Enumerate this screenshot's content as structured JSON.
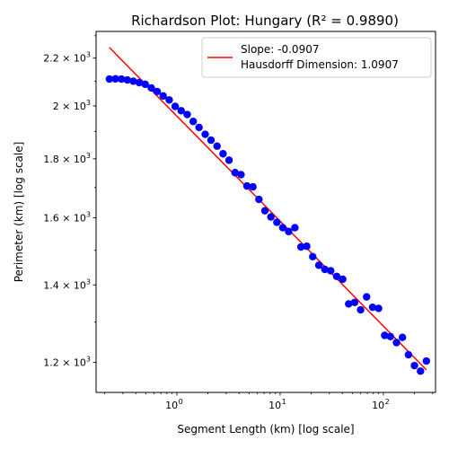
{
  "chart_data": {
    "type": "scatter",
    "title": "Richardson Plot: Hungary (R² = 0.9890)",
    "xlabel": "Segment Length (km) [log scale]",
    "ylabel": "Perimeter (km) [log scale]",
    "xscale": "log",
    "yscale": "log",
    "xlim": [
      0.165,
      320
    ],
    "ylim": [
      1130,
      2320
    ],
    "x_ticks": [
      {
        "value": 1,
        "base": "10",
        "exp": "0"
      },
      {
        "value": 10,
        "base": "10",
        "exp": "1"
      },
      {
        "value": 100,
        "base": "10",
        "exp": "2"
      }
    ],
    "y_ticks": [
      {
        "value": 1200,
        "mant": "1.2",
        "exp": "3"
      },
      {
        "value": 1400,
        "mant": "1.4",
        "exp": "3"
      },
      {
        "value": 1600,
        "mant": "1.6",
        "exp": "3"
      },
      {
        "value": 1800,
        "mant": "1.8",
        "exp": "3"
      },
      {
        "value": 2000,
        "mant": "2",
        "exp": "3"
      },
      {
        "value": 2200,
        "mant": "2.2",
        "exp": "3"
      }
    ],
    "grid": false,
    "legend_position": "top-right",
    "series": [
      {
        "kind": "scatter",
        "color": "#0000ff",
        "points": [
          [
            0.222,
            2110
          ],
          [
            0.254,
            2111
          ],
          [
            0.29,
            2110
          ],
          [
            0.331,
            2106
          ],
          [
            0.378,
            2101
          ],
          [
            0.432,
            2095
          ],
          [
            0.494,
            2088
          ],
          [
            0.565,
            2073
          ],
          [
            0.645,
            2058
          ],
          [
            0.737,
            2040
          ],
          [
            0.843,
            2024
          ],
          [
            0.963,
            1998
          ],
          [
            1.1,
            1981
          ],
          [
            1.26,
            1966
          ],
          [
            1.44,
            1939
          ],
          [
            1.64,
            1916
          ],
          [
            1.88,
            1890
          ],
          [
            2.14,
            1868
          ],
          [
            2.45,
            1846
          ],
          [
            2.8,
            1818
          ],
          [
            3.2,
            1795
          ],
          [
            3.66,
            1751
          ],
          [
            4.18,
            1744
          ],
          [
            4.77,
            1705
          ],
          [
            5.45,
            1702
          ],
          [
            6.23,
            1660
          ],
          [
            7.12,
            1623
          ],
          [
            8.14,
            1603
          ],
          [
            9.3,
            1586
          ],
          [
            10.6,
            1569
          ],
          [
            12.1,
            1557
          ],
          [
            13.9,
            1569
          ],
          [
            15.9,
            1510
          ],
          [
            18.1,
            1512
          ],
          [
            20.7,
            1481
          ],
          [
            23.7,
            1456
          ],
          [
            27.1,
            1444
          ],
          [
            30.9,
            1440
          ],
          [
            35.3,
            1424
          ],
          [
            40.4,
            1416
          ],
          [
            46.1,
            1348
          ],
          [
            52.7,
            1352
          ],
          [
            60.2,
            1332
          ],
          [
            68.8,
            1367
          ],
          [
            78.6,
            1339
          ],
          [
            89.9,
            1336
          ],
          [
            103,
            1266
          ],
          [
            117,
            1263
          ],
          [
            134,
            1248
          ],
          [
            153,
            1261
          ],
          [
            175,
            1218
          ],
          [
            200,
            1192
          ],
          [
            229,
            1179
          ],
          [
            261,
            1203
          ]
        ]
      },
      {
        "kind": "line",
        "name": "Slope: -0.0907\nHausdorff Dimension: 1.0907",
        "color": "#ff0000",
        "points": [
          [
            0.222,
            2247
          ],
          [
            261,
            1182
          ]
        ]
      }
    ],
    "legend": {
      "line1": "Slope: -0.0907",
      "line2": "Hausdorff Dimension: 1.0907"
    }
  }
}
